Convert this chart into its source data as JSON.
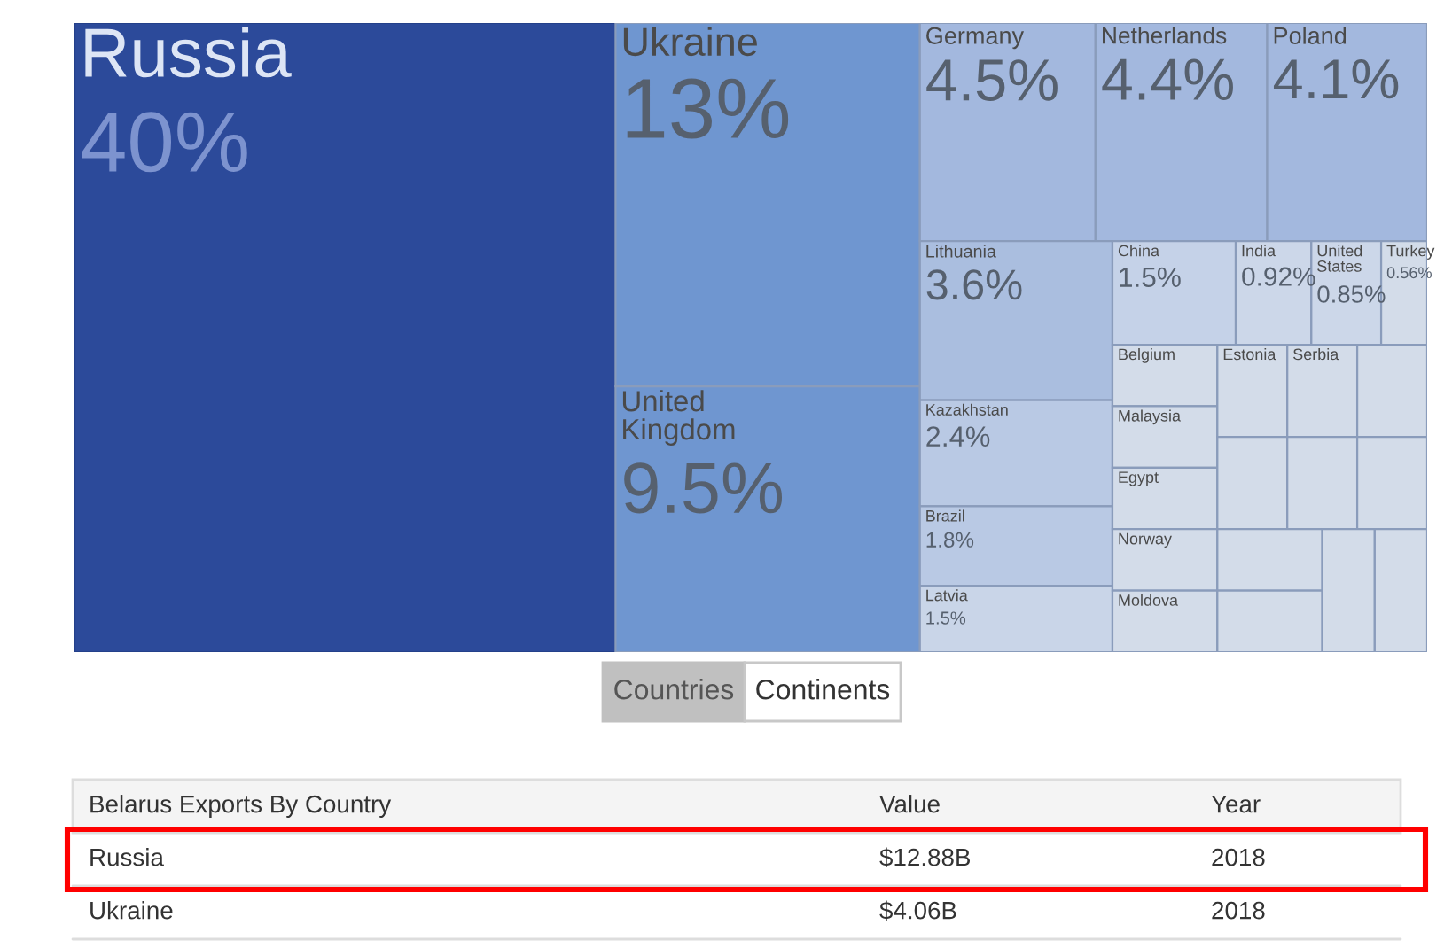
{
  "chart_data": {
    "type": "other",
    "categories": [
      "Russia",
      "Ukraine",
      "United Kingdom",
      "Germany",
      "Netherlands",
      "Poland",
      "Lithuania",
      "Kazakhstan",
      "Brazil",
      "Latvia",
      "China",
      "India",
      "United States",
      "Turkey",
      "Belgium",
      "Malaysia",
      "Egypt",
      "Norway",
      "Moldova",
      "Estonia",
      "Serbia",
      null,
      null,
      null,
      null,
      null,
      null,
      null,
      null
    ],
    "values": [
      40,
      13,
      9.5,
      4.5,
      4.4,
      4.1,
      3.6,
      2.4,
      1.8,
      1.5,
      1.5,
      0.92,
      0.85,
      0.56,
      null,
      null,
      null,
      null,
      null,
      null,
      null,
      null,
      null,
      null,
      null,
      null,
      null,
      null,
      null
    ],
    "value_labels": [
      "40%",
      "13%",
      "9.5%",
      "4.5%",
      "4.4%",
      "4.1%",
      "3.6%",
      "2.4%",
      "1.8%",
      "1.5%",
      "1.5%",
      "0.92%",
      "0.85%",
      "0.56%",
      null,
      null,
      null,
      null,
      null,
      null,
      null,
      null,
      null,
      null,
      null,
      null,
      null,
      null,
      null
    ],
    "colors": [
      "#2c4a9a",
      "#6f96d0",
      "#6f96d0",
      "#a3b8de",
      "#a3b8de",
      "#a3b8de",
      "#aabedf",
      "#b9c9e4",
      "#b9c9e4",
      "#c9d5e8",
      "#c5d2e8",
      "#ccd7e9",
      "#ccd7e9",
      "#d3dce9",
      "#d3dce9",
      "#d3dce9",
      "#d3dce9",
      "#d3dce9",
      "#d3dce9",
      "#d3dce9",
      "#d3dce9",
      "#d3dce9",
      "#d3dce9",
      "#d3dce9",
      "#d3dce9",
      "#d3dce9",
      "#d3dce9",
      "#d3dce9",
      "#d3dce9"
    ],
    "annotations": [
      "Countries",
      "Continents",
      "Belarus Exports By Country",
      "Value",
      "Year",
      "Russia",
      "$12.88B",
      "2018",
      "Ukraine",
      "$4.06B",
      "2018"
    ]
  }
}
